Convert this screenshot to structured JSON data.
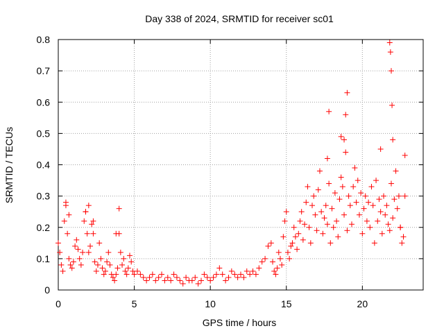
{
  "chart_data": {
    "type": "scatter",
    "title": "Day 338 of 2024, SRMTID for receiver sc01",
    "xlabel": "GPS time / hours",
    "ylabel": "SRMTID / TECUs",
    "xlim": [
      0,
      24
    ],
    "ylim": [
      0,
      0.8
    ],
    "x_ticks": [
      0,
      5,
      10,
      15,
      20
    ],
    "x_tick_labels": [
      "0",
      "5",
      "10",
      "15",
      "20"
    ],
    "y_ticks": [
      0,
      0.1,
      0.2,
      0.3,
      0.4,
      0.5,
      0.6,
      0.7,
      0.8
    ],
    "y_tick_labels": [
      "0",
      "0.1",
      "0.2",
      "0.3",
      "0.4",
      "0.5",
      "0.6",
      "0.7",
      "0.8"
    ],
    "grid": true,
    "marker": "+",
    "series": [
      {
        "name": "SRMTID",
        "color": "#ff0000",
        "x": [
          0.0,
          0.1,
          0.2,
          0.3,
          0.4,
          0.5,
          0.6,
          0.7,
          0.8,
          0.9,
          1.0,
          1.1,
          1.2,
          1.3,
          1.4,
          1.5,
          1.6,
          1.7,
          1.8,
          1.9,
          2.0,
          2.1,
          2.2,
          2.3,
          2.4,
          2.5,
          2.6,
          2.7,
          2.8,
          2.9,
          3.0,
          3.1,
          3.2,
          3.3,
          3.4,
          3.5,
          3.6,
          3.7,
          3.8,
          3.9,
          4.0,
          4.1,
          4.2,
          4.3,
          4.4,
          4.5,
          4.6,
          4.7,
          4.8,
          4.9,
          5.0,
          5.2,
          5.4,
          5.6,
          5.8,
          6.0,
          6.2,
          6.4,
          6.6,
          6.8,
          7.0,
          7.2,
          7.4,
          7.6,
          7.8,
          8.0,
          8.2,
          8.4,
          8.6,
          8.8,
          9.0,
          9.2,
          9.4,
          9.6,
          9.8,
          10.0,
          10.2,
          10.4,
          10.6,
          10.8,
          11.0,
          11.2,
          11.4,
          11.6,
          11.8,
          12.0,
          12.2,
          12.4,
          12.6,
          12.8,
          13.0,
          13.2,
          13.4,
          13.6,
          13.8,
          14.0,
          14.1,
          14.2,
          14.3,
          14.4,
          14.5,
          14.6,
          14.7,
          14.8,
          14.9,
          15.0,
          15.1,
          15.2,
          15.3,
          15.4,
          15.5,
          15.6,
          15.7,
          15.8,
          15.9,
          16.0,
          16.1,
          16.2,
          16.3,
          16.4,
          16.5,
          16.6,
          16.7,
          16.8,
          16.9,
          17.0,
          17.1,
          17.2,
          17.3,
          17.4,
          17.5,
          17.6,
          17.7,
          17.8,
          17.9,
          18.0,
          18.1,
          18.2,
          18.3,
          18.4,
          18.5,
          18.6,
          18.7,
          18.8,
          18.9,
          19.0,
          19.1,
          19.2,
          19.3,
          19.4,
          19.5,
          19.6,
          19.7,
          19.8,
          19.9,
          20.0,
          20.1,
          20.2,
          20.3,
          20.4,
          20.5,
          20.6,
          20.7,
          20.8,
          20.9,
          21.0,
          21.1,
          21.2,
          21.3,
          21.4,
          21.5,
          21.6,
          21.7,
          21.8,
          21.9,
          22.0,
          22.1,
          22.2,
          22.3,
          22.4,
          22.5,
          22.6,
          22.7,
          22.8,
          0.5,
          0.7,
          1.8,
          2.0,
          2.3,
          3.8,
          4.0,
          17.7,
          17.8,
          18.6,
          18.8,
          18.9,
          19.0,
          21.2,
          21.8,
          21.85,
          21.9,
          21.95,
          22.0,
          22.5,
          22.8
        ],
        "y": [
          0.15,
          0.12,
          0.08,
          0.06,
          0.22,
          0.28,
          0.18,
          0.1,
          0.08,
          0.07,
          0.09,
          0.14,
          0.16,
          0.13,
          0.1,
          0.08,
          0.12,
          0.22,
          0.25,
          0.18,
          0.12,
          0.14,
          0.21,
          0.18,
          0.09,
          0.06,
          0.08,
          0.15,
          0.1,
          0.07,
          0.05,
          0.06,
          0.09,
          0.12,
          0.08,
          0.05,
          0.04,
          0.03,
          0.05,
          0.07,
          0.18,
          0.12,
          0.08,
          0.1,
          0.06,
          0.05,
          0.07,
          0.11,
          0.09,
          0.06,
          0.05,
          0.06,
          0.05,
          0.04,
          0.03,
          0.04,
          0.05,
          0.03,
          0.04,
          0.05,
          0.03,
          0.04,
          0.03,
          0.05,
          0.04,
          0.03,
          0.02,
          0.04,
          0.03,
          0.03,
          0.04,
          0.02,
          0.03,
          0.05,
          0.04,
          0.03,
          0.04,
          0.05,
          0.07,
          0.05,
          0.03,
          0.04,
          0.06,
          0.05,
          0.04,
          0.05,
          0.04,
          0.06,
          0.05,
          0.06,
          0.05,
          0.07,
          0.09,
          0.1,
          0.14,
          0.15,
          0.09,
          0.06,
          0.05,
          0.07,
          0.12,
          0.1,
          0.08,
          0.17,
          0.22,
          0.25,
          0.12,
          0.1,
          0.14,
          0.15,
          0.2,
          0.17,
          0.13,
          0.18,
          0.22,
          0.25,
          0.16,
          0.21,
          0.28,
          0.33,
          0.2,
          0.15,
          0.27,
          0.3,
          0.24,
          0.19,
          0.32,
          0.38,
          0.25,
          0.18,
          0.23,
          0.27,
          0.21,
          0.34,
          0.15,
          0.26,
          0.2,
          0.31,
          0.22,
          0.17,
          0.29,
          0.36,
          0.33,
          0.24,
          0.44,
          0.19,
          0.3,
          0.27,
          0.21,
          0.33,
          0.39,
          0.28,
          0.35,
          0.24,
          0.31,
          0.18,
          0.26,
          0.3,
          0.22,
          0.28,
          0.2,
          0.33,
          0.27,
          0.15,
          0.35,
          0.22,
          0.29,
          0.25,
          0.18,
          0.3,
          0.24,
          0.27,
          0.21,
          0.19,
          0.34,
          0.23,
          0.29,
          0.38,
          0.26,
          0.3,
          0.2,
          0.15,
          0.17,
          0.3,
          0.27,
          0.24,
          0.25,
          0.27,
          0.22,
          0.18,
          0.26,
          0.42,
          0.57,
          0.49,
          0.48,
          0.56,
          0.63,
          0.45,
          0.79,
          0.76,
          0.7,
          0.59,
          0.48,
          0.2,
          0.43
        ]
      }
    ]
  }
}
